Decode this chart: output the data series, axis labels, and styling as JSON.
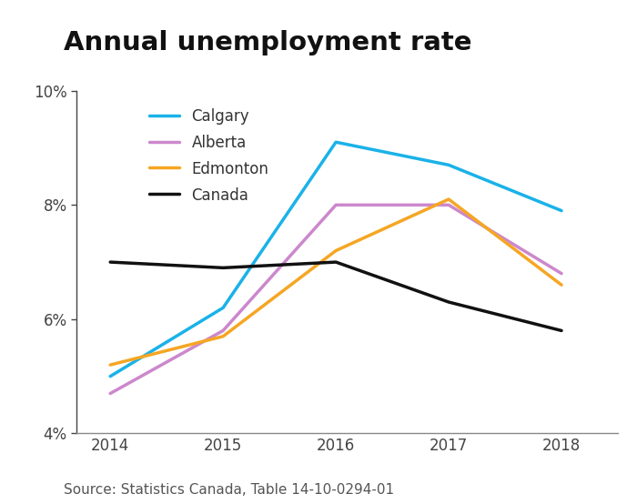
{
  "title": "Annual unemployment rate",
  "source_text": "Source: Statistics Canada, Table 14-10-0294-01",
  "years": [
    2014,
    2015,
    2016,
    2017,
    2018
  ],
  "series": {
    "Calgary": {
      "values": [
        5.0,
        6.2,
        9.1,
        8.7,
        7.9
      ],
      "color": "#1ab2e8",
      "linewidth": 2.5
    },
    "Alberta": {
      "values": [
        4.7,
        5.8,
        8.0,
        8.0,
        6.8
      ],
      "color": "#cc88cc",
      "linewidth": 2.5
    },
    "Edmonton": {
      "values": [
        5.2,
        5.7,
        7.2,
        8.1,
        6.6
      ],
      "color": "#f5a623",
      "linewidth": 2.5
    },
    "Canada": {
      "values": [
        7.0,
        6.9,
        7.0,
        6.3,
        5.8
      ],
      "color": "#111111",
      "linewidth": 2.5
    }
  },
  "ylim": [
    4.0,
    10.0
  ],
  "yticks": [
    4,
    6,
    8,
    10
  ],
  "xlim": [
    2013.7,
    2018.5
  ],
  "background_color": "#ffffff",
  "title_fontsize": 21,
  "legend_fontsize": 12,
  "tick_fontsize": 12,
  "source_fontsize": 11
}
